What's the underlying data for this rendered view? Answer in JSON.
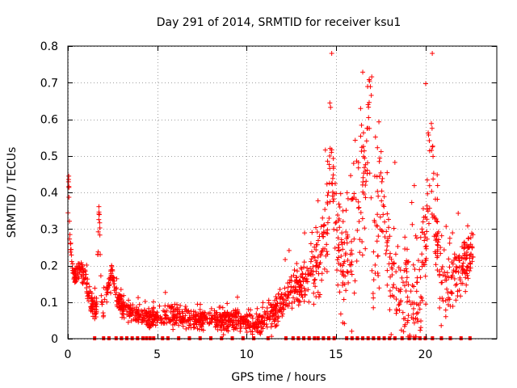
{
  "chart_data": {
    "type": "scatter",
    "title": "Day 291 of 2014, SRMTID for receiver ksu1",
    "xlabel": "GPS time / hours",
    "ylabel": "SRMTID / TECUs",
    "xlim": [
      0,
      24
    ],
    "ylim": [
      0,
      0.8
    ],
    "xticks": [
      0,
      5,
      10,
      15,
      20
    ],
    "xtick_labels": [
      "0",
      "5",
      "10",
      "15",
      "20"
    ],
    "yticks": [
      0,
      0.1,
      0.2,
      0.3,
      0.4,
      0.5,
      0.6,
      0.7,
      0.8
    ],
    "ytick_labels": [
      "0",
      "0.1",
      "0.2",
      "0.3",
      "0.4",
      "0.5",
      "0.6",
      "0.7",
      "0.8"
    ],
    "grid": true,
    "marker": "plus",
    "color": "#ff0000",
    "series": [
      {
        "name": "SRMTID",
        "profile": {
          "x": [
            0.0,
            0.05,
            0.1,
            0.2,
            0.4,
            0.7,
            1.0,
            1.3,
            1.6,
            1.75,
            1.9,
            2.2,
            2.5,
            2.7,
            3.0,
            3.5,
            4.0,
            5.0,
            6.0,
            7.0,
            8.0,
            9.0,
            10.0,
            10.5,
            11.0,
            11.5,
            12.0,
            12.5,
            13.0,
            13.5,
            14.0,
            14.5,
            14.75,
            15.0,
            15.5,
            16.0,
            16.5,
            16.85,
            17.2,
            17.5,
            18.0,
            18.5,
            19.0,
            19.5,
            20.0,
            20.3,
            20.6,
            21.0,
            21.5,
            22.0,
            22.5,
            22.7
          ],
          "y": [
            0.33,
            0.45,
            0.28,
            0.22,
            0.17,
            0.19,
            0.16,
            0.09,
            0.08,
            0.36,
            0.07,
            0.14,
            0.18,
            0.12,
            0.09,
            0.07,
            0.06,
            0.06,
            0.06,
            0.05,
            0.05,
            0.05,
            0.05,
            0.04,
            0.05,
            0.07,
            0.09,
            0.12,
            0.15,
            0.18,
            0.2,
            0.3,
            0.55,
            0.26,
            0.2,
            0.3,
            0.42,
            0.62,
            0.2,
            0.45,
            0.2,
            0.15,
            0.12,
            0.12,
            0.25,
            0.5,
            0.25,
            0.15,
            0.18,
            0.2,
            0.22,
            0.27
          ]
        },
        "spread": [
          [
            0,
            0.02
          ],
          [
            3,
            0.02
          ],
          [
            10,
            0.02
          ],
          [
            13,
            0.04
          ],
          [
            14.5,
            0.09
          ],
          [
            17,
            0.15
          ],
          [
            18.5,
            0.09
          ],
          [
            20.3,
            0.12
          ],
          [
            21,
            0.07
          ],
          [
            22.7,
            0.04
          ]
        ],
        "count": 1700,
        "x_range": [
          0.0,
          22.7
        ]
      }
    ],
    "flags": {
      "name": "data gap markers",
      "y": 0,
      "x": [
        1.5,
        2.0,
        2.3,
        2.7,
        3.0,
        3.3,
        3.6,
        3.9,
        4.2,
        4.4,
        4.6,
        4.8,
        5.3,
        5.6,
        6.2,
        6.8,
        7.4,
        8.0,
        8.6,
        9.2,
        9.8,
        10.4,
        11.2,
        12.2,
        12.6,
        12.9,
        13.2,
        13.5,
        13.8,
        14.0,
        14.3,
        14.6,
        14.9,
        15.6,
        15.9,
        16.2,
        16.5,
        16.8,
        17.1,
        17.4,
        17.7,
        18.0,
        18.3,
        18.7,
        19.1,
        19.4,
        19.7,
        20.0,
        20.4,
        20.9,
        21.4,
        22.0,
        22.5
      ]
    }
  }
}
